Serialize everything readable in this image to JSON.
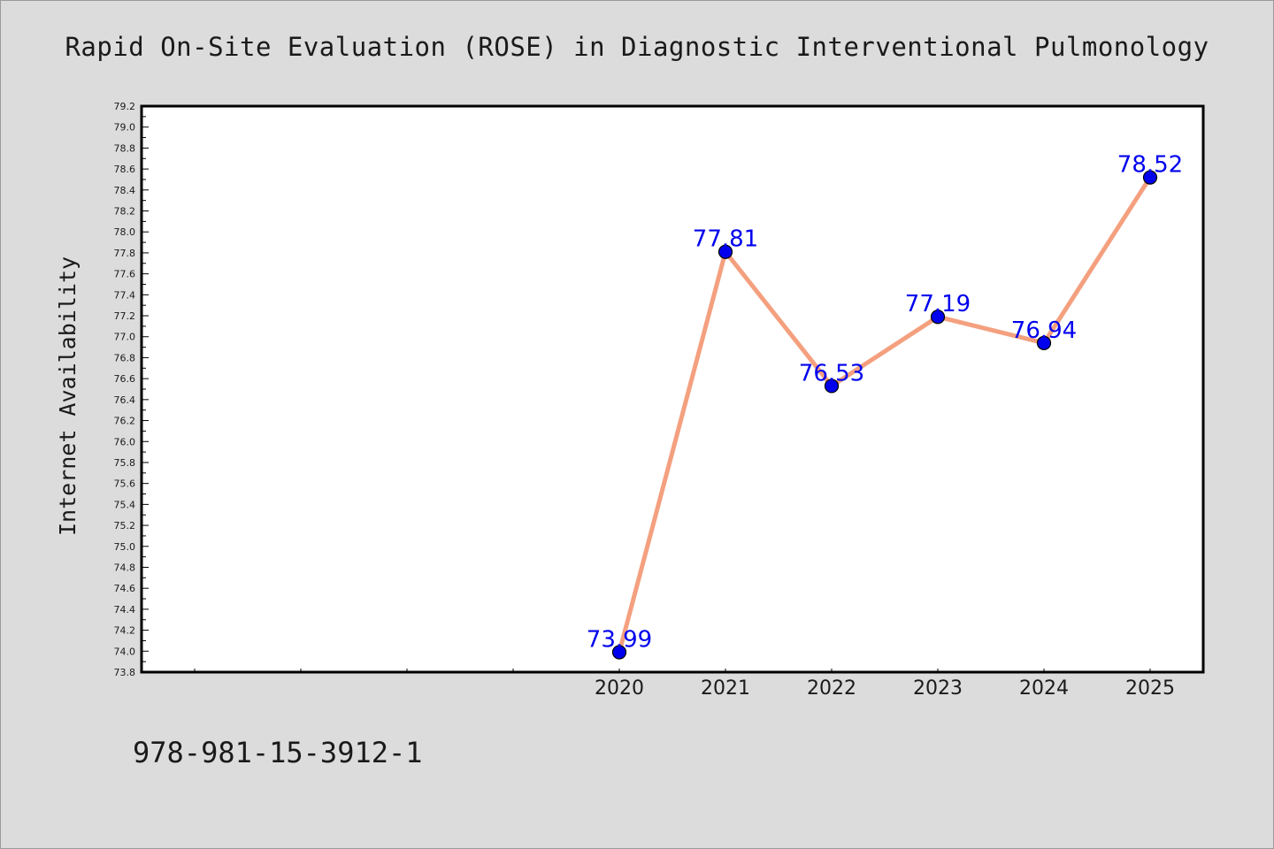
{
  "page": {
    "footer_text": "978-981-15-3912-1"
  },
  "colors": {
    "background": "#dcdcdc",
    "plot_background": "#ffffff",
    "line": "#f4a07f",
    "marker": "#0000ee",
    "label": "#0000ee"
  },
  "chart_data": {
    "type": "line",
    "title": "Rapid On-Site Evaluation (ROSE) in Diagnostic Interventional Pulmonology",
    "xlabel": "",
    "ylabel": "Internet Availability",
    "x": [
      "2020",
      "2021",
      "2022",
      "2023",
      "2024",
      "2025"
    ],
    "series": [
      {
        "values": [
          73.99,
          77.81,
          76.53,
          77.19,
          76.94,
          78.52
        ],
        "labels": [
          "73.99",
          "77.81",
          "76.53",
          "77.19",
          "76.94",
          "78.52"
        ]
      }
    ],
    "ylim": [
      73.8,
      79.2
    ],
    "y_major_step": 0.2,
    "y_ticks": [
      "73.8",
      "74.0",
      "74.2",
      "74.4",
      "74.6",
      "74.8",
      "75.0",
      "75.2",
      "75.4",
      "75.6",
      "75.8",
      "76.0",
      "76.2",
      "76.4",
      "76.6",
      "76.8",
      "77.0",
      "77.2",
      "77.4",
      "77.6",
      "77.8",
      "78.0",
      "78.2",
      "78.4",
      "78.6",
      "78.8",
      "79.0",
      "79.2"
    ],
    "x_slots": 10,
    "x_first_labeled_slot": 4,
    "grid": false,
    "legend": "none"
  }
}
